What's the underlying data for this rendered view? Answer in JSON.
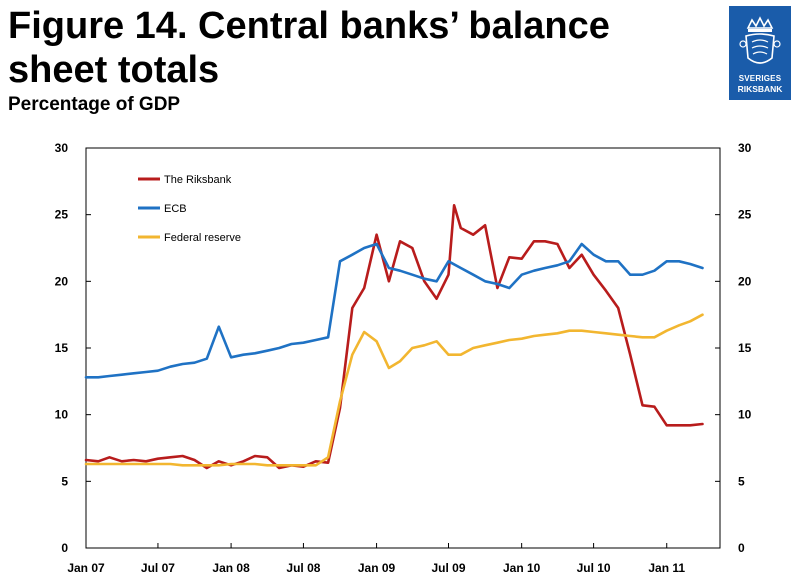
{
  "header": {
    "title": "Figure 14. Central banks’ balance sheet totals",
    "subtitle": "Percentage of GDP",
    "logo_line1": "SVERIGES",
    "logo_line2": "RIKSBANK"
  },
  "chart_data": {
    "type": "line",
    "ylim": [
      0,
      30
    ],
    "y_ticks": [
      0,
      5,
      10,
      15,
      20,
      25,
      30
    ],
    "y_tick_labels": [
      "0",
      "5",
      "10",
      "15",
      "20",
      "25",
      "30"
    ],
    "x_range": [
      "2007-01-01",
      "2011-05-15"
    ],
    "x_ticks": [
      "2007-01-01",
      "2007-07-01",
      "2008-01-01",
      "2008-07-01",
      "2009-01-01",
      "2009-07-01",
      "2010-01-01",
      "2010-07-01",
      "2011-01-01"
    ],
    "x_tick_labels": [
      "Jan 07",
      "Jul 07",
      "Jan 08",
      "Jul 08",
      "Jan 09",
      "Jul 09",
      "Jan 10",
      "Jul 10",
      "Jan 11"
    ],
    "grid": false,
    "legend_position": "top-left",
    "series": [
      {
        "name": "The Riksbank",
        "color": "#b81c1c",
        "points": [
          [
            "2007-01-01",
            6.6
          ],
          [
            "2007-02-01",
            6.5
          ],
          [
            "2007-03-01",
            6.8
          ],
          [
            "2007-04-01",
            6.5
          ],
          [
            "2007-05-01",
            6.6
          ],
          [
            "2007-06-01",
            6.5
          ],
          [
            "2007-07-01",
            6.7
          ],
          [
            "2007-08-01",
            6.8
          ],
          [
            "2007-09-01",
            6.9
          ],
          [
            "2007-10-01",
            6.6
          ],
          [
            "2007-11-01",
            6.0
          ],
          [
            "2007-12-01",
            6.5
          ],
          [
            "2008-01-01",
            6.2
          ],
          [
            "2008-02-01",
            6.5
          ],
          [
            "2008-03-01",
            6.9
          ],
          [
            "2008-04-01",
            6.8
          ],
          [
            "2008-05-01",
            6.0
          ],
          [
            "2008-06-01",
            6.2
          ],
          [
            "2008-07-01",
            6.1
          ],
          [
            "2008-08-01",
            6.5
          ],
          [
            "2008-09-01",
            6.4
          ],
          [
            "2008-10-01",
            10.5
          ],
          [
            "2008-11-01",
            18.0
          ],
          [
            "2008-12-01",
            19.5
          ],
          [
            "2009-01-01",
            23.5
          ],
          [
            "2009-02-01",
            20.0
          ],
          [
            "2009-03-01",
            23.0
          ],
          [
            "2009-04-01",
            22.5
          ],
          [
            "2009-05-01",
            20.0
          ],
          [
            "2009-06-01",
            18.7
          ],
          [
            "2009-07-01",
            20.5
          ],
          [
            "2009-07-15",
            25.7
          ],
          [
            "2009-08-01",
            24.0
          ],
          [
            "2009-09-01",
            23.5
          ],
          [
            "2009-10-01",
            24.2
          ],
          [
            "2009-11-01",
            19.5
          ],
          [
            "2009-12-01",
            21.8
          ],
          [
            "2010-01-01",
            21.7
          ],
          [
            "2010-02-01",
            23.0
          ],
          [
            "2010-03-01",
            23.0
          ],
          [
            "2010-04-01",
            22.8
          ],
          [
            "2010-05-01",
            21.0
          ],
          [
            "2010-06-01",
            22.0
          ],
          [
            "2010-07-01",
            20.5
          ],
          [
            "2010-08-01",
            19.3
          ],
          [
            "2010-09-01",
            18.0
          ],
          [
            "2010-10-01",
            14.5
          ],
          [
            "2010-11-01",
            10.7
          ],
          [
            "2010-12-01",
            10.6
          ],
          [
            "2011-01-01",
            9.2
          ],
          [
            "2011-02-01",
            9.2
          ],
          [
            "2011-03-01",
            9.2
          ],
          [
            "2011-04-01",
            9.3
          ]
        ]
      },
      {
        "name": "ECB",
        "color": "#1f72c4",
        "points": [
          [
            "2007-01-01",
            12.8
          ],
          [
            "2007-02-01",
            12.8
          ],
          [
            "2007-03-01",
            12.9
          ],
          [
            "2007-04-01",
            13.0
          ],
          [
            "2007-05-01",
            13.1
          ],
          [
            "2007-06-01",
            13.2
          ],
          [
            "2007-07-01",
            13.3
          ],
          [
            "2007-08-01",
            13.6
          ],
          [
            "2007-09-01",
            13.8
          ],
          [
            "2007-10-01",
            13.9
          ],
          [
            "2007-11-01",
            14.2
          ],
          [
            "2007-12-01",
            16.6
          ],
          [
            "2008-01-01",
            14.3
          ],
          [
            "2008-02-01",
            14.5
          ],
          [
            "2008-03-01",
            14.6
          ],
          [
            "2008-04-01",
            14.8
          ],
          [
            "2008-05-01",
            15.0
          ],
          [
            "2008-06-01",
            15.3
          ],
          [
            "2008-07-01",
            15.4
          ],
          [
            "2008-08-01",
            15.6
          ],
          [
            "2008-09-01",
            15.8
          ],
          [
            "2008-10-01",
            21.5
          ],
          [
            "2008-11-01",
            22.0
          ],
          [
            "2008-12-01",
            22.5
          ],
          [
            "2009-01-01",
            22.8
          ],
          [
            "2009-02-01",
            21.0
          ],
          [
            "2009-03-01",
            20.8
          ],
          [
            "2009-04-01",
            20.5
          ],
          [
            "2009-05-01",
            20.2
          ],
          [
            "2009-06-01",
            20.0
          ],
          [
            "2009-07-01",
            21.5
          ],
          [
            "2009-08-01",
            21.0
          ],
          [
            "2009-09-01",
            20.5
          ],
          [
            "2009-10-01",
            20.0
          ],
          [
            "2009-11-01",
            19.8
          ],
          [
            "2009-12-01",
            19.5
          ],
          [
            "2010-01-01",
            20.5
          ],
          [
            "2010-02-01",
            20.8
          ],
          [
            "2010-03-01",
            21.0
          ],
          [
            "2010-04-01",
            21.2
          ],
          [
            "2010-05-01",
            21.5
          ],
          [
            "2010-06-01",
            22.8
          ],
          [
            "2010-07-01",
            22.0
          ],
          [
            "2010-08-01",
            21.5
          ],
          [
            "2010-09-01",
            21.5
          ],
          [
            "2010-10-01",
            20.5
          ],
          [
            "2010-11-01",
            20.5
          ],
          [
            "2010-12-01",
            20.8
          ],
          [
            "2011-01-01",
            21.5
          ],
          [
            "2011-02-01",
            21.5
          ],
          [
            "2011-03-01",
            21.3
          ],
          [
            "2011-04-01",
            21.0
          ]
        ]
      },
      {
        "name": "Federal reserve",
        "color": "#f2b630",
        "points": [
          [
            "2007-01-01",
            6.3
          ],
          [
            "2007-02-01",
            6.3
          ],
          [
            "2007-03-01",
            6.3
          ],
          [
            "2007-04-01",
            6.3
          ],
          [
            "2007-05-01",
            6.3
          ],
          [
            "2007-06-01",
            6.3
          ],
          [
            "2007-07-01",
            6.3
          ],
          [
            "2007-08-01",
            6.3
          ],
          [
            "2007-09-01",
            6.2
          ],
          [
            "2007-10-01",
            6.2
          ],
          [
            "2007-11-01",
            6.2
          ],
          [
            "2007-12-01",
            6.2
          ],
          [
            "2008-01-01",
            6.3
          ],
          [
            "2008-02-01",
            6.3
          ],
          [
            "2008-03-01",
            6.3
          ],
          [
            "2008-04-01",
            6.2
          ],
          [
            "2008-05-01",
            6.2
          ],
          [
            "2008-06-01",
            6.2
          ],
          [
            "2008-07-01",
            6.2
          ],
          [
            "2008-08-01",
            6.2
          ],
          [
            "2008-09-01",
            6.8
          ],
          [
            "2008-10-01",
            11.0
          ],
          [
            "2008-11-01",
            14.5
          ],
          [
            "2008-12-01",
            16.2
          ],
          [
            "2009-01-01",
            15.5
          ],
          [
            "2009-02-01",
            13.5
          ],
          [
            "2009-03-01",
            14.0
          ],
          [
            "2009-04-01",
            15.0
          ],
          [
            "2009-05-01",
            15.2
          ],
          [
            "2009-06-01",
            15.5
          ],
          [
            "2009-07-01",
            14.5
          ],
          [
            "2009-08-01",
            14.5
          ],
          [
            "2009-09-01",
            15.0
          ],
          [
            "2009-10-01",
            15.2
          ],
          [
            "2009-11-01",
            15.4
          ],
          [
            "2009-12-01",
            15.6
          ],
          [
            "2010-01-01",
            15.7
          ],
          [
            "2010-02-01",
            15.9
          ],
          [
            "2010-03-01",
            16.0
          ],
          [
            "2010-04-01",
            16.1
          ],
          [
            "2010-05-01",
            16.3
          ],
          [
            "2010-06-01",
            16.3
          ],
          [
            "2010-07-01",
            16.2
          ],
          [
            "2010-08-01",
            16.1
          ],
          [
            "2010-09-01",
            16.0
          ],
          [
            "2010-10-01",
            15.9
          ],
          [
            "2010-11-01",
            15.8
          ],
          [
            "2010-12-01",
            15.8
          ],
          [
            "2011-01-01",
            16.3
          ],
          [
            "2011-02-01",
            16.7
          ],
          [
            "2011-03-01",
            17.0
          ],
          [
            "2011-04-01",
            17.5
          ]
        ]
      }
    ]
  }
}
